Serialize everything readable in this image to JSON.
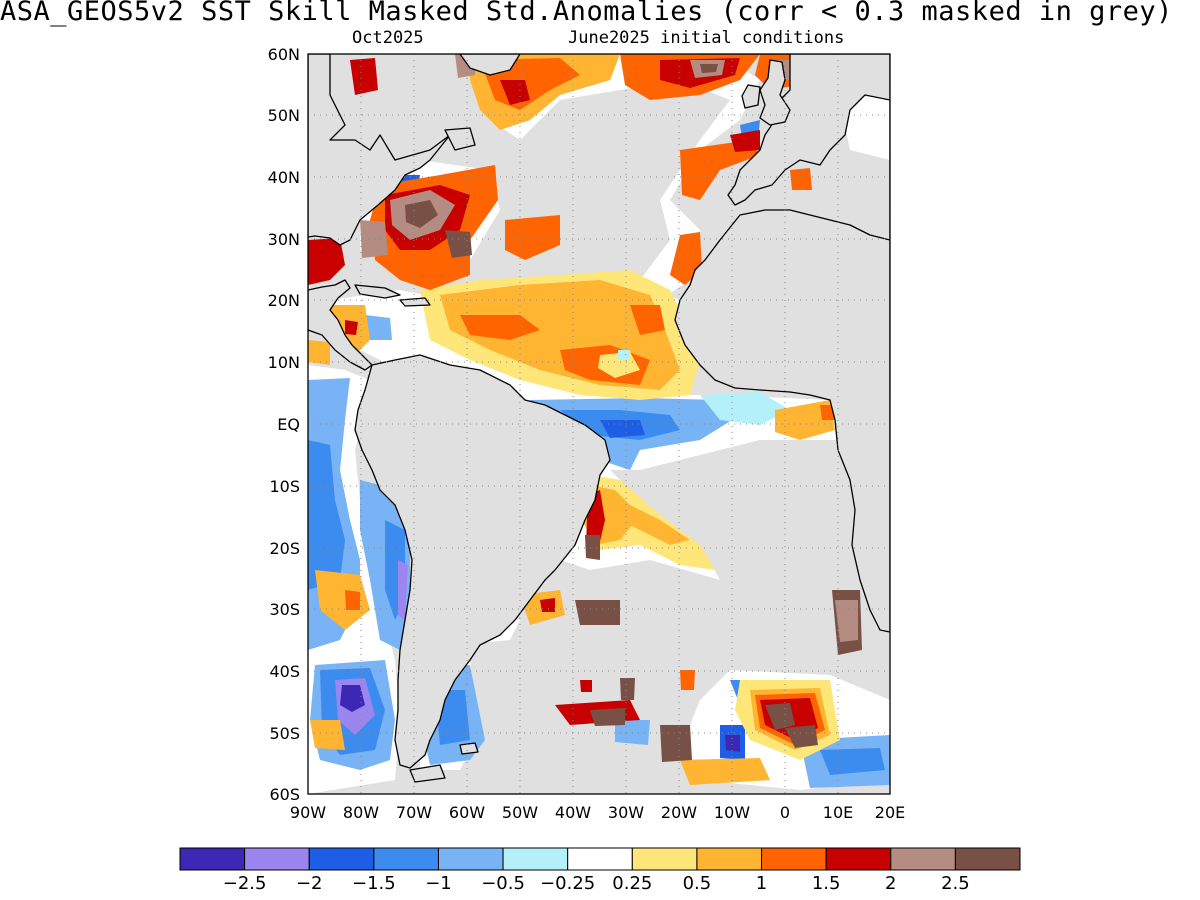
{
  "header": {
    "title": "ASA_GEOS5v2  SST Skill Masked Std.Anomalies (corr < 0.3 masked in grey)",
    "forecast_month": "Oct2025",
    "init_conditions": "June2025 initial conditions"
  },
  "map": {
    "region": "Atlantic Ocean",
    "lon_range": [
      -90,
      20
    ],
    "lat_range": [
      -60,
      60
    ],
    "lat_ticks": [
      "60N",
      "50N",
      "40N",
      "30N",
      "20N",
      "10N",
      "EQ",
      "10S",
      "20S",
      "30S",
      "40S",
      "50S",
      "60S"
    ],
    "lon_ticks": [
      "90W",
      "80W",
      "70W",
      "60W",
      "50W",
      "40W",
      "30W",
      "20W",
      "10W",
      "0",
      "10E",
      "20E"
    ],
    "mask_color": "#e0e0e0",
    "land_color": "#e0e0e0",
    "coastline_color": "#000000"
  },
  "colorbar": {
    "colors": [
      "#3c28b4",
      "#9b86f0",
      "#1e5ee6",
      "#3c8cf0",
      "#78b4f5",
      "#b4f0fa",
      "#ffffff",
      "#ffe678",
      "#ffb432",
      "#ff6400",
      "#c80000",
      "#b48c82",
      "#785046"
    ],
    "labels": [
      "-2.5",
      "-2",
      "-1.5",
      "-1",
      "-0.5",
      "-0.25",
      "0.25",
      "0.5",
      "1",
      "1.5",
      "2",
      "2.5"
    ]
  }
}
